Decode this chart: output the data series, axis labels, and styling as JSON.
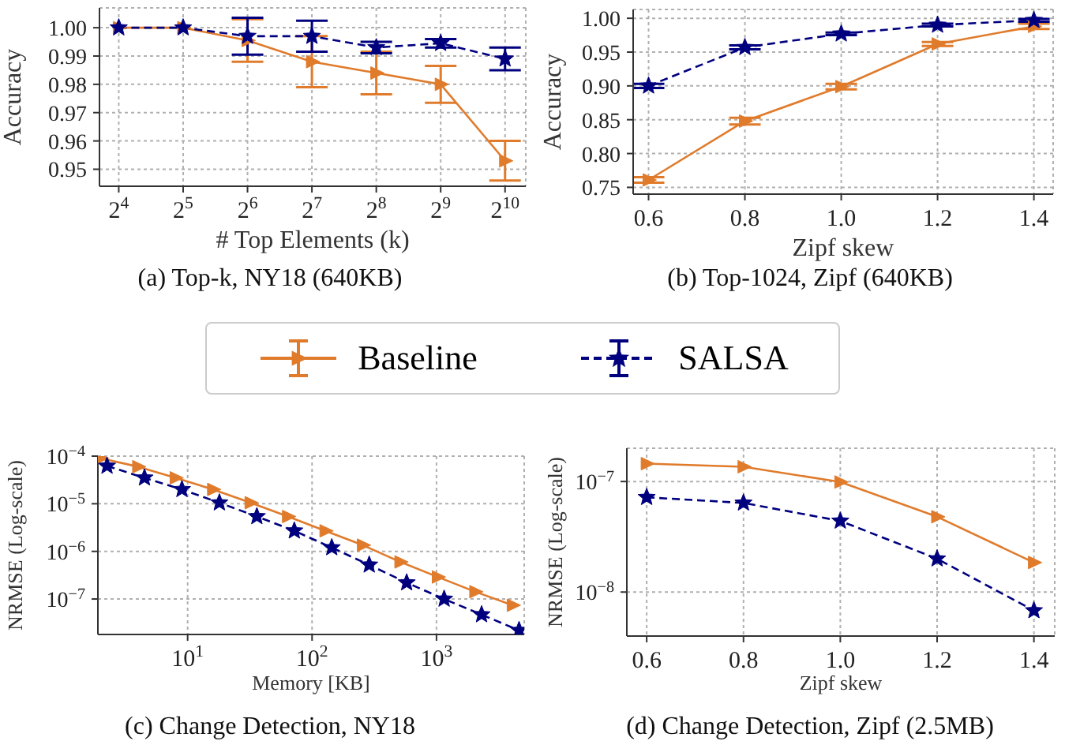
{
  "chart_data": [
    {
      "type": "line",
      "title": "(a) Top-k, NY18 (640KB)",
      "xlabel": "# Top Elements (k)",
      "ylabel": "Accuracy",
      "log": "x",
      "grid": true,
      "legend": "bottom",
      "xlim": [
        13,
        1280
      ],
      "xticks": [
        {
          "value": 16,
          "label": "2$^{4}$"
        },
        {
          "value": 32,
          "label": "2$^{5}$"
        },
        {
          "value": 64,
          "label": "2$^{6}$"
        },
        {
          "value": 128,
          "label": "2$^{7}$"
        },
        {
          "value": 256,
          "label": "2$^{8}$"
        },
        {
          "value": 512,
          "label": "2$^{9}$"
        },
        {
          "value": 1024,
          "label": "2$^{10}$"
        }
      ],
      "ylim": [
        0.944,
        1.007
      ],
      "yticks": [
        0.95,
        0.96,
        0.97,
        0.98,
        0.99,
        {
          "value": 1,
          "label": "1.00"
        }
      ],
      "x": [
        16,
        32,
        64,
        128,
        256,
        512,
        1024
      ],
      "series": [
        {
          "name": "Baseline",
          "color": "#e07b2c",
          "marker": "triangle",
          "line_style": "solid",
          "values": [
            1.0,
            1.0,
            0.9955,
            0.988,
            0.984,
            0.98,
            0.953
          ],
          "errors": [
            null,
            null,
            0.0075,
            0.009,
            0.0075,
            0.0065,
            0.007
          ]
        },
        {
          "name": "SALSA",
          "color": "#00007f",
          "marker": "star",
          "line_style": "dashed",
          "values": [
            1.0,
            1.0,
            0.997,
            0.997,
            0.993,
            0.9945,
            0.989
          ],
          "errors": [
            null,
            null,
            0.0065,
            0.0055,
            0.002,
            0.0015,
            0.004
          ]
        }
      ]
    },
    {
      "type": "line",
      "title": "(b) Top-1024, Zipf (640KB)",
      "xlabel": "Zipf skew",
      "ylabel": "Accuracy",
      "grid": true,
      "xlim": [
        0.568,
        1.44
      ],
      "xticks": [
        0.6,
        0.8,
        {
          "value": 1,
          "label": "1.0"
        },
        1.2,
        1.4
      ],
      "ylim": [
        0.74,
        1.013
      ],
      "yticks": [
        0.75,
        {
          "value": 0.8,
          "label": "0.80"
        },
        0.85,
        {
          "value": 0.9,
          "label": "0.90"
        },
        0.95,
        {
          "value": 1,
          "label": "1.00"
        }
      ],
      "x": [
        0.6,
        0.8,
        1.0,
        1.2,
        1.4
      ],
      "series": [
        {
          "color": "#e07b2c",
          "marker": "triangle",
          "line_style": "solid",
          "values": [
            0.761,
            0.848,
            0.899,
            0.962,
            0.988
          ],
          "errors": [
            0.004,
            0.005,
            0.004,
            0.003,
            0.004
          ]
        },
        {
          "color": "#00007f",
          "marker": "star",
          "line_style": "dashed",
          "values": [
            0.9,
            0.957,
            0.977,
            0.99,
            0.997
          ],
          "errors": [
            0.003,
            0.003,
            0.002,
            0.002,
            0.002
          ]
        }
      ]
    },
    {
      "type": "line",
      "title": "(c) Change Detection, NY18",
      "xlabel": "Memory [KB]",
      "ylabel": "NRMSE (Log-scale)",
      "log": "xy",
      "grid": true,
      "xlim": [
        1.9,
        5070
      ],
      "xticks": [
        {
          "value": 10,
          "label": "10$^{1}$"
        },
        {
          "value": 100,
          "label": "10$^{2}$"
        },
        {
          "value": 1000,
          "label": "10$^{3}$"
        }
      ],
      "ylim": [
        1.8e-08,
        0.0001
      ],
      "yticks": [
        {
          "value": 1e-07,
          "label": "10$^{−7}$"
        },
        {
          "value": 1e-06,
          "label": "10$^{−6}$"
        },
        {
          "value": 1e-05,
          "label": "10$^{−5}$"
        },
        {
          "value": 0.0001,
          "label": "10$^{−4}$"
        }
      ],
      "series": [
        {
          "color": "#e07b2c",
          "marker": "triangle",
          "line_style": "solid",
          "x": [
            2,
            4,
            8,
            16,
            32,
            64,
            128,
            256,
            512,
            1024,
            2048,
            4096
          ],
          "values": [
            9e-05,
            6e-05,
            3.5e-05,
            2e-05,
            1.05e-05,
            5.4e-06,
            2.7e-06,
            1.35e-06,
            6e-07,
            2.9e-07,
            1.42e-07,
            7.4e-08
          ]
        },
        {
          "color": "#00007f",
          "marker": "star",
          "line_style": "dashed",
          "x": [
            2.25,
            4.5,
            9,
            18,
            36,
            72,
            144,
            288,
            576,
            1152,
            2304,
            4608
          ],
          "values": [
            6.2e-05,
            3.5e-05,
            2e-05,
            1.05e-05,
            5.4e-06,
            2.7e-06,
            1.2e-06,
            5.2e-07,
            2.2e-07,
            1e-07,
            4.7e-08,
            2.2e-08
          ]
        }
      ]
    },
    {
      "type": "line",
      "title": "(d) Change Detection, Zipf (2.5MB)",
      "xlabel": "Zipf skew",
      "ylabel": "NRMSE (Log-scale)",
      "log": "y",
      "grid": true,
      "xlim": [
        0.559,
        1.443
      ],
      "xticks": [
        0.6,
        0.8,
        {
          "value": 1,
          "label": "1.0"
        },
        1.2,
        1.4
      ],
      "ylim": [
        4e-09,
        2e-07
      ],
      "yticks": [
        {
          "value": 1e-08,
          "label": "10$^{−8}$"
        },
        {
          "value": 1e-07,
          "label": "10$^{−7}$"
        }
      ],
      "x": [
        0.6,
        0.8,
        1.0,
        1.2,
        1.4
      ],
      "series": [
        {
          "color": "#e07b2c",
          "marker": "triangle",
          "line_style": "solid",
          "values": [
            1.45e-07,
            1.36e-07,
            9.9e-08,
            4.8e-08,
            1.85e-08
          ]
        },
        {
          "color": "#00007f",
          "marker": "star",
          "line_style": "dashed",
          "values": [
            7.2e-08,
            6.4e-08,
            4.4e-08,
            2e-08,
            6.8e-09
          ]
        }
      ]
    }
  ]
}
